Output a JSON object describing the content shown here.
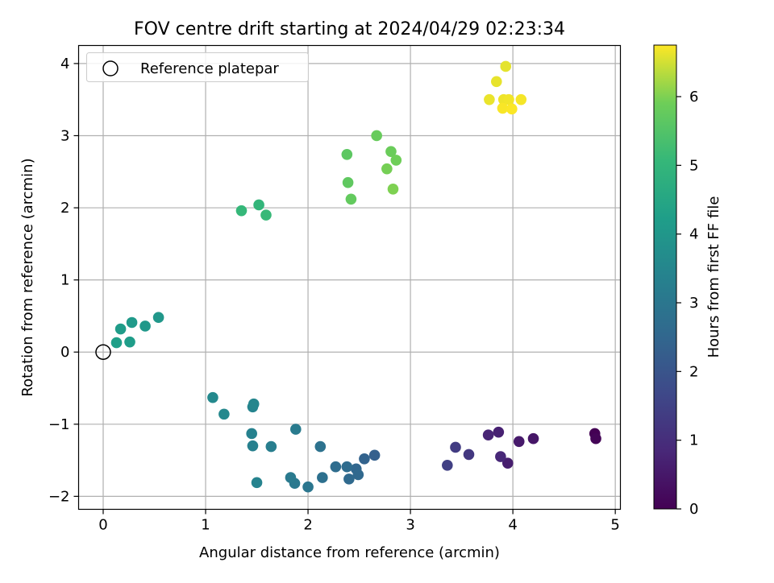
{
  "chart_data": {
    "type": "scatter",
    "title": "FOV centre drift starting at 2024/04/29 02:23:34",
    "xlabel": "Angular distance from reference (arcmin)",
    "ylabel": "Rotation from reference (arcmin)",
    "xlim": [
      -0.24,
      5.05
    ],
    "ylim": [
      -2.18,
      4.25
    ],
    "xticks": [
      0,
      1,
      2,
      3,
      4,
      5
    ],
    "yticks": [
      -2,
      -1,
      0,
      1,
      2,
      3,
      4
    ],
    "grid": true,
    "legend": {
      "placement": "top-left",
      "entries": [
        {
          "label": "Reference platepar",
          "marker": "open-circle"
        }
      ]
    },
    "reference_point": {
      "x": 0,
      "y": 0
    },
    "colorbar": {
      "label": "Hours from first FF file",
      "colormap": "viridis",
      "min": 0,
      "max": 6.75,
      "ticks": [
        0,
        1,
        2,
        3,
        4,
        5,
        6
      ]
    },
    "points": [
      {
        "x": 4.8,
        "y": -1.13,
        "c": 0.0
      },
      {
        "x": 4.81,
        "y": -1.2,
        "c": 0.08
      },
      {
        "x": 4.2,
        "y": -1.2,
        "c": 0.45
      },
      {
        "x": 4.06,
        "y": -1.24,
        "c": 0.55
      },
      {
        "x": 3.95,
        "y": -1.54,
        "c": 0.62
      },
      {
        "x": 3.86,
        "y": -1.11,
        "c": 0.7
      },
      {
        "x": 3.76,
        "y": -1.15,
        "c": 0.78
      },
      {
        "x": 3.88,
        "y": -1.45,
        "c": 0.85
      },
      {
        "x": 3.57,
        "y": -1.42,
        "c": 1.25
      },
      {
        "x": 3.44,
        "y": -1.32,
        "c": 1.35
      },
      {
        "x": 3.36,
        "y": -1.57,
        "c": 1.45
      },
      {
        "x": 2.65,
        "y": -1.43,
        "c": 2.3
      },
      {
        "x": 2.55,
        "y": -1.48,
        "c": 2.4
      },
      {
        "x": 2.47,
        "y": -1.62,
        "c": 2.5
      },
      {
        "x": 2.49,
        "y": -1.7,
        "c": 2.55
      },
      {
        "x": 2.4,
        "y": -1.76,
        "c": 2.6
      },
      {
        "x": 2.38,
        "y": -1.59,
        "c": 2.65
      },
      {
        "x": 2.27,
        "y": -1.59,
        "c": 2.7
      },
      {
        "x": 2.14,
        "y": -1.74,
        "c": 2.8
      },
      {
        "x": 2.12,
        "y": -1.31,
        "c": 2.85
      },
      {
        "x": 2.0,
        "y": -1.87,
        "c": 3.0
      },
      {
        "x": 1.87,
        "y": -1.82,
        "c": 3.05
      },
      {
        "x": 1.83,
        "y": -1.74,
        "c": 3.1
      },
      {
        "x": 1.88,
        "y": -1.07,
        "c": 3.15
      },
      {
        "x": 1.64,
        "y": -1.31,
        "c": 3.25
      },
      {
        "x": 1.46,
        "y": -1.3,
        "c": 3.3
      },
      {
        "x": 1.45,
        "y": -1.13,
        "c": 3.35
      },
      {
        "x": 1.5,
        "y": -1.81,
        "c": 3.4
      },
      {
        "x": 1.46,
        "y": -0.76,
        "c": 3.45
      },
      {
        "x": 1.47,
        "y": -0.72,
        "c": 3.5
      },
      {
        "x": 1.18,
        "y": -0.86,
        "c": 3.55
      },
      {
        "x": 1.07,
        "y": -0.63,
        "c": 3.6
      },
      {
        "x": 0.54,
        "y": 0.48,
        "c": 4.0
      },
      {
        "x": 0.41,
        "y": 0.36,
        "c": 4.05
      },
      {
        "x": 0.28,
        "y": 0.41,
        "c": 4.1
      },
      {
        "x": 0.17,
        "y": 0.32,
        "c": 4.15
      },
      {
        "x": 0.26,
        "y": 0.14,
        "c": 4.2
      },
      {
        "x": 0.13,
        "y": 0.13,
        "c": 4.25
      },
      {
        "x": 1.52,
        "y": 2.04,
        "c": 5.0
      },
      {
        "x": 1.35,
        "y": 1.96,
        "c": 5.05
      },
      {
        "x": 1.59,
        "y": 1.9,
        "c": 5.1
      },
      {
        "x": 2.38,
        "y": 2.74,
        "c": 5.65
      },
      {
        "x": 2.39,
        "y": 2.35,
        "c": 5.7
      },
      {
        "x": 2.42,
        "y": 2.12,
        "c": 5.75
      },
      {
        "x": 2.67,
        "y": 3.0,
        "c": 5.8
      },
      {
        "x": 2.81,
        "y": 2.78,
        "c": 5.85
      },
      {
        "x": 2.86,
        "y": 2.66,
        "c": 5.9
      },
      {
        "x": 2.77,
        "y": 2.54,
        "c": 5.95
      },
      {
        "x": 2.83,
        "y": 2.26,
        "c": 6.0
      },
      {
        "x": 3.93,
        "y": 3.96,
        "c": 6.6
      },
      {
        "x": 3.84,
        "y": 3.75,
        "c": 6.62
      },
      {
        "x": 3.77,
        "y": 3.5,
        "c": 6.64
      },
      {
        "x": 3.91,
        "y": 3.5,
        "c": 6.66
      },
      {
        "x": 3.96,
        "y": 3.5,
        "c": 6.68
      },
      {
        "x": 4.08,
        "y": 3.5,
        "c": 6.7
      },
      {
        "x": 3.9,
        "y": 3.38,
        "c": 6.72
      },
      {
        "x": 3.99,
        "y": 3.37,
        "c": 6.74
      }
    ]
  }
}
